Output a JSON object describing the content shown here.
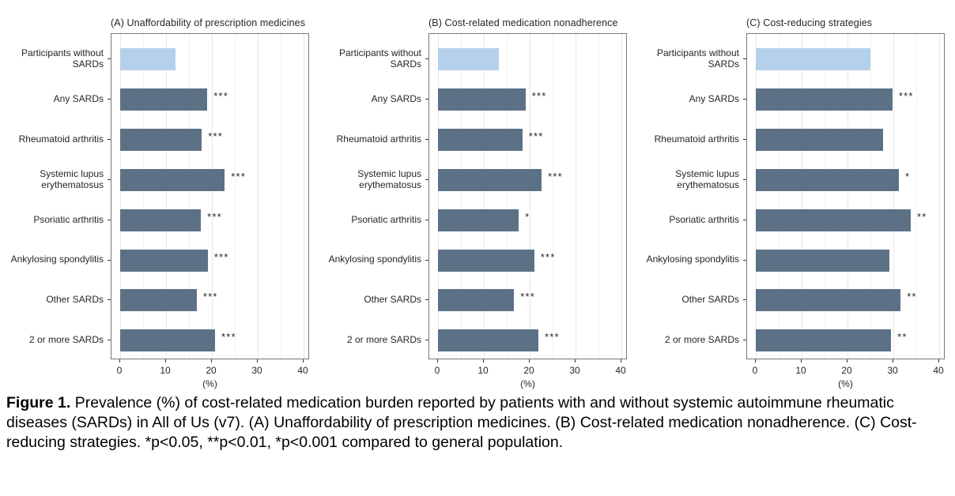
{
  "figure": {
    "caption_label": "Figure 1.",
    "caption_text": " Prevalence (%) of cost-related medication burden reported by patients with and without systemic autoimmune rheumatic diseases (SARDs) in All of Us (v7). (A) Unaffordability of prescription medicines. (B) Cost-related medication nonadherence. (C) Cost-reducing strategies. *p<0.05, **p<0.01, *p<0.001 compared to general population."
  },
  "colors": {
    "reference_bar": "#b5d0ea",
    "sards_bar": "#5d7186",
    "panel_border": "#787878",
    "grid_major": "#e7e7e7",
    "grid_minor": "#f2f2f2",
    "axis_text": "#262626",
    "tick_mark": "#333333"
  },
  "chart_data": [
    {
      "type": "bar",
      "orientation": "horizontal",
      "title": "(A) Unaffordability of prescription medicines",
      "categories": [
        "Participants without SARDs",
        "Any SARDs",
        "Rheumatoid arthritis",
        "Systemic lupus erythematosus",
        "Psoriatic arthritis",
        "Ankylosing spondylitis",
        "Other SARDs",
        "2 or more SARDs"
      ],
      "values": [
        12.1,
        19.0,
        17.8,
        22.8,
        17.6,
        19.1,
        16.7,
        20.7
      ],
      "significance": [
        "",
        "***",
        "***",
        "***",
        "***",
        "***",
        "***",
        "***"
      ],
      "reference_category_index": 0,
      "xlabel": "(%)",
      "xticks": [
        0,
        10,
        20,
        30,
        40
      ],
      "minor_xticks": [
        5,
        15,
        25,
        35
      ],
      "xlim": [
        0,
        42
      ],
      "grid": true,
      "legend": "none"
    },
    {
      "type": "bar",
      "orientation": "horizontal",
      "title": "(B) Cost-related medication nonadherence",
      "categories": [
        "Participants without SARDs",
        "Any SARDs",
        "Rheumatoid arthritis",
        "Systemic lupus erythematosus",
        "Psoriatic arthritis",
        "Ankylosing spondylitis",
        "Other SARDs",
        "2 or more SARDs"
      ],
      "values": [
        13.3,
        19.1,
        18.4,
        22.6,
        17.6,
        21.0,
        16.6,
        21.9
      ],
      "significance": [
        "",
        "***",
        "***",
        "***",
        "*",
        "***",
        "***",
        "***"
      ],
      "reference_category_index": 0,
      "xlabel": "(%)",
      "xticks": [
        0,
        10,
        20,
        30,
        40
      ],
      "minor_xticks": [
        5,
        15,
        25,
        35
      ],
      "xlim": [
        0,
        42
      ],
      "grid": true,
      "legend": "none"
    },
    {
      "type": "bar",
      "orientation": "horizontal",
      "title": "(C) Cost-reducing strategies",
      "categories": [
        "Participants without SARDs",
        "Any SARDs",
        "Rheumatoid arthritis",
        "Systemic lupus erythematosus",
        "Psoriatic arthritis",
        "Ankylosing spondylitis",
        "Other SARDs",
        "2 or more SARDs"
      ],
      "values": [
        25.0,
        29.8,
        27.8,
        31.2,
        33.8,
        29.1,
        31.6,
        29.5
      ],
      "significance": [
        "",
        "***",
        "",
        "*",
        "**",
        "",
        "**",
        "**"
      ],
      "reference_category_index": 0,
      "xlabel": "(%)",
      "xticks": [
        0,
        10,
        20,
        30,
        40
      ],
      "minor_xticks": [
        5,
        15,
        25,
        35
      ],
      "xlim": [
        0,
        42
      ],
      "grid": true,
      "legend": "none"
    }
  ]
}
